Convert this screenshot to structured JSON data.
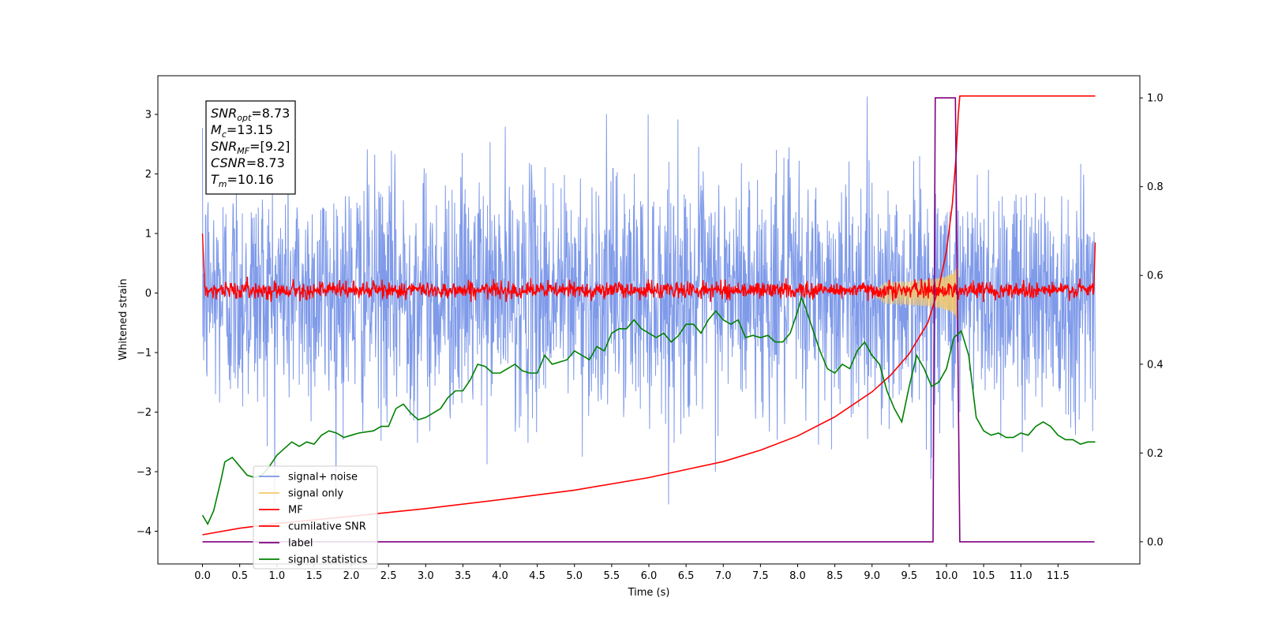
{
  "chart_data": {
    "type": "line",
    "title": "",
    "xlabel": "Time (s)",
    "ylabel": "Whitened strain",
    "xlim": [
      -0.6,
      12.6
    ],
    "ylim": [
      -4.55,
      3.65
    ],
    "y2lim": [
      -0.05,
      1.05
    ],
    "grid": false,
    "legend_position": "lower-left",
    "x_ticks": [
      "0.0",
      "0.5",
      "1.0",
      "1.5",
      "2.0",
      "2.5",
      "3.0",
      "3.5",
      "4.0",
      "4.5",
      "5.0",
      "5.5",
      "6.0",
      "6.5",
      "7.0",
      "7.5",
      "8.0",
      "8.5",
      "9.0",
      "9.5",
      "10.0",
      "10.5",
      "11.0",
      "11.5"
    ],
    "y_ticks": [
      "3",
      "2",
      "1",
      "0",
      "−1",
      "−2",
      "−3",
      "−4"
    ],
    "y2_ticks": [
      "1.0",
      "0.8",
      "0.6",
      "0.4",
      "0.2",
      "0.0"
    ],
    "annotation": [
      {
        "base": "SNR",
        "sub": "opt",
        "rest": "=8.73"
      },
      {
        "base": "M",
        "sub": "c",
        "rest": "=13.15"
      },
      {
        "base": "SNR",
        "sub": "MF",
        "rest": "=[9.2]"
      },
      {
        "base": "CSNR",
        "sub": "",
        "rest": "=8.73"
      },
      {
        "base": "T",
        "sub": "m",
        "rest": "=10.16"
      }
    ],
    "series": [
      {
        "name": "signal+ noise",
        "color": "#7895e8",
        "axis": "left",
        "style": "gaussian-noise",
        "x_range": [
          0.0,
          12.0
        ],
        "approx_std": 1.0,
        "approx_range": [
          -3.55,
          3.3
        ]
      },
      {
        "name": "signal only",
        "color": "#f5c96a",
        "axis": "left",
        "style": "chirp",
        "x_range": [
          9.0,
          10.16
        ],
        "peak_time": 10.16,
        "peak_amplitude": 0.72
      },
      {
        "name": "MF",
        "color": "#ff0000",
        "axis": "left",
        "style": "noise-band",
        "x_range": [
          0.0,
          12.0
        ],
        "points": [
          [
            0.0,
            1.0
          ],
          [
            0.03,
            0.1
          ],
          [
            12.0,
            0.85
          ]
        ],
        "approx_range": [
          -0.15,
          0.4
        ]
      },
      {
        "name": "cumilative SNR",
        "color": "#ff0000",
        "axis": "left",
        "points": [
          [
            0.0,
            -4.06
          ],
          [
            0.5,
            -3.95
          ],
          [
            1.0,
            -3.87
          ],
          [
            2.0,
            -3.75
          ],
          [
            3.0,
            -3.62
          ],
          [
            4.0,
            -3.47
          ],
          [
            5.0,
            -3.31
          ],
          [
            6.0,
            -3.1
          ],
          [
            7.0,
            -2.83
          ],
          [
            7.5,
            -2.64
          ],
          [
            8.0,
            -2.4
          ],
          [
            8.5,
            -2.08
          ],
          [
            9.0,
            -1.66
          ],
          [
            9.25,
            -1.38
          ],
          [
            9.5,
            -1.02
          ],
          [
            9.75,
            -0.5
          ],
          [
            9.9,
            0.1
          ],
          [
            10.0,
            0.7
          ],
          [
            10.08,
            1.5
          ],
          [
            10.13,
            2.3
          ],
          [
            10.16,
            3.0
          ],
          [
            10.18,
            3.31
          ],
          [
            12.0,
            3.31
          ]
        ]
      },
      {
        "name": "label",
        "color": "#800080",
        "axis": "right",
        "points": [
          [
            0.0,
            0.0
          ],
          [
            9.82,
            0.0
          ],
          [
            9.85,
            1.0
          ],
          [
            10.12,
            1.0
          ],
          [
            10.18,
            0.0
          ],
          [
            11.99,
            0.0
          ]
        ]
      },
      {
        "name": "signal statistics",
        "color": "#008000",
        "axis": "right",
        "points": [
          [
            0.0,
            0.06
          ],
          [
            0.07,
            0.04
          ],
          [
            0.15,
            0.07
          ],
          [
            0.25,
            0.14
          ],
          [
            0.3,
            0.18
          ],
          [
            0.4,
            0.19
          ],
          [
            0.5,
            0.17
          ],
          [
            0.6,
            0.15
          ],
          [
            0.7,
            0.145
          ],
          [
            0.8,
            0.15
          ],
          [
            0.9,
            0.17
          ],
          [
            1.0,
            0.195
          ],
          [
            1.1,
            0.21
          ],
          [
            1.2,
            0.225
          ],
          [
            1.3,
            0.215
          ],
          [
            1.4,
            0.225
          ],
          [
            1.5,
            0.22
          ],
          [
            1.6,
            0.24
          ],
          [
            1.7,
            0.25
          ],
          [
            1.8,
            0.245
          ],
          [
            1.9,
            0.235
          ],
          [
            2.0,
            0.24
          ],
          [
            2.1,
            0.245
          ],
          [
            2.3,
            0.25
          ],
          [
            2.4,
            0.26
          ],
          [
            2.5,
            0.26
          ],
          [
            2.6,
            0.3
          ],
          [
            2.7,
            0.31
          ],
          [
            2.8,
            0.29
          ],
          [
            2.9,
            0.275
          ],
          [
            3.0,
            0.28
          ],
          [
            3.1,
            0.29
          ],
          [
            3.2,
            0.3
          ],
          [
            3.3,
            0.325
          ],
          [
            3.4,
            0.34
          ],
          [
            3.5,
            0.34
          ],
          [
            3.6,
            0.365
          ],
          [
            3.7,
            0.4
          ],
          [
            3.8,
            0.395
          ],
          [
            3.9,
            0.38
          ],
          [
            4.0,
            0.38
          ],
          [
            4.1,
            0.39
          ],
          [
            4.2,
            0.4
          ],
          [
            4.3,
            0.385
          ],
          [
            4.4,
            0.38
          ],
          [
            4.5,
            0.38
          ],
          [
            4.6,
            0.42
          ],
          [
            4.7,
            0.4
          ],
          [
            4.8,
            0.405
          ],
          [
            4.9,
            0.41
          ],
          [
            5.0,
            0.43
          ],
          [
            5.1,
            0.42
          ],
          [
            5.2,
            0.41
          ],
          [
            5.3,
            0.44
          ],
          [
            5.4,
            0.43
          ],
          [
            5.5,
            0.47
          ],
          [
            5.6,
            0.48
          ],
          [
            5.7,
            0.48
          ],
          [
            5.8,
            0.5
          ],
          [
            5.9,
            0.48
          ],
          [
            6.0,
            0.47
          ],
          [
            6.1,
            0.46
          ],
          [
            6.2,
            0.47
          ],
          [
            6.3,
            0.45
          ],
          [
            6.4,
            0.465
          ],
          [
            6.5,
            0.49
          ],
          [
            6.6,
            0.49
          ],
          [
            6.7,
            0.47
          ],
          [
            6.8,
            0.5
          ],
          [
            6.9,
            0.52
          ],
          [
            7.0,
            0.5
          ],
          [
            7.1,
            0.49
          ],
          [
            7.2,
            0.5
          ],
          [
            7.3,
            0.46
          ],
          [
            7.4,
            0.465
          ],
          [
            7.5,
            0.46
          ],
          [
            7.6,
            0.465
          ],
          [
            7.7,
            0.45
          ],
          [
            7.8,
            0.45
          ],
          [
            7.9,
            0.47
          ],
          [
            8.0,
            0.52
          ],
          [
            8.05,
            0.55
          ],
          [
            8.1,
            0.53
          ],
          [
            8.2,
            0.48
          ],
          [
            8.3,
            0.43
          ],
          [
            8.4,
            0.39
          ],
          [
            8.5,
            0.38
          ],
          [
            8.6,
            0.4
          ],
          [
            8.7,
            0.39
          ],
          [
            8.8,
            0.43
          ],
          [
            8.9,
            0.45
          ],
          [
            9.0,
            0.42
          ],
          [
            9.1,
            0.4
          ],
          [
            9.2,
            0.34
          ],
          [
            9.3,
            0.3
          ],
          [
            9.4,
            0.27
          ],
          [
            9.5,
            0.35
          ],
          [
            9.6,
            0.42
          ],
          [
            9.7,
            0.39
          ],
          [
            9.8,
            0.35
          ],
          [
            9.9,
            0.36
          ],
          [
            10.0,
            0.39
          ],
          [
            10.1,
            0.46
          ],
          [
            10.2,
            0.475
          ],
          [
            10.3,
            0.42
          ],
          [
            10.4,
            0.28
          ],
          [
            10.5,
            0.25
          ],
          [
            10.6,
            0.24
          ],
          [
            10.7,
            0.245
          ],
          [
            10.8,
            0.235
          ],
          [
            10.9,
            0.235
          ],
          [
            11.0,
            0.245
          ],
          [
            11.1,
            0.24
          ],
          [
            11.2,
            0.26
          ],
          [
            11.3,
            0.27
          ],
          [
            11.4,
            0.26
          ],
          [
            11.5,
            0.24
          ],
          [
            11.6,
            0.23
          ],
          [
            11.7,
            0.23
          ],
          [
            11.8,
            0.22
          ],
          [
            11.9,
            0.225
          ],
          [
            12.0,
            0.225
          ]
        ]
      }
    ]
  }
}
